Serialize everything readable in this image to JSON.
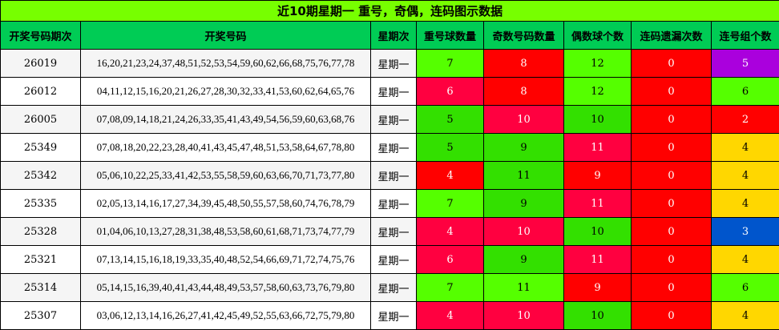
{
  "title": "近10期星期一 重号，奇偶，连码图示数据",
  "headers": [
    "开奖号码期次",
    "开奖号码",
    "星期次",
    "重号球数量",
    "奇数号码数量",
    "偶数球个数",
    "连码遗漏次数",
    "连号组个数"
  ],
  "colors": {
    "light_green": "#55ff00",
    "dark_green": "#33e000",
    "red": "#ff0000",
    "crimson": "#ff0040",
    "purple": "#aa00dd",
    "yellow": "#ffd700",
    "blue": "#0055cc",
    "title_bg": "#77ff00",
    "header_bg": "#00cc55"
  },
  "rows": [
    {
      "period": "26019",
      "numbers": "16,20,21,23,24,37,48,51,52,53,54,59,60,62,66,68,75,76,77,78",
      "weekday": "星期一",
      "cells": [
        {
          "v": "7",
          "c": "#55ff00",
          "t": "#000"
        },
        {
          "v": "8",
          "c": "#ff0000",
          "t": "#fff"
        },
        {
          "v": "12",
          "c": "#55ff00",
          "t": "#000"
        },
        {
          "v": "0",
          "c": "#ff0000",
          "t": "#fff"
        },
        {
          "v": "5",
          "c": "#aa00dd",
          "t": "#fff"
        }
      ]
    },
    {
      "period": "26012",
      "numbers": "04,11,12,15,16,20,21,26,27,28,30,32,33,41,53,60,62,64,65,76",
      "weekday": "星期一",
      "cells": [
        {
          "v": "6",
          "c": "#ff0040",
          "t": "#fff"
        },
        {
          "v": "8",
          "c": "#ff0000",
          "t": "#fff"
        },
        {
          "v": "12",
          "c": "#55ff00",
          "t": "#000"
        },
        {
          "v": "0",
          "c": "#ff0000",
          "t": "#fff"
        },
        {
          "v": "6",
          "c": "#55ff00",
          "t": "#000"
        }
      ]
    },
    {
      "period": "26005",
      "numbers": "07,08,09,14,18,21,24,26,33,35,41,43,49,54,56,59,60,63,68,76",
      "weekday": "星期一",
      "cells": [
        {
          "v": "5",
          "c": "#33e000",
          "t": "#000"
        },
        {
          "v": "10",
          "c": "#ff0040",
          "t": "#fff"
        },
        {
          "v": "10",
          "c": "#33e000",
          "t": "#000"
        },
        {
          "v": "0",
          "c": "#ff0000",
          "t": "#fff"
        },
        {
          "v": "2",
          "c": "#ff0000",
          "t": "#fff"
        }
      ]
    },
    {
      "period": "25349",
      "numbers": "07,08,18,20,22,23,28,40,41,43,45,47,48,51,53,58,64,67,78,80",
      "weekday": "星期一",
      "cells": [
        {
          "v": "5",
          "c": "#33e000",
          "t": "#000"
        },
        {
          "v": "9",
          "c": "#33e000",
          "t": "#000"
        },
        {
          "v": "11",
          "c": "#ff0040",
          "t": "#fff"
        },
        {
          "v": "0",
          "c": "#ff0000",
          "t": "#fff"
        },
        {
          "v": "4",
          "c": "#ffd700",
          "t": "#000"
        }
      ]
    },
    {
      "period": "25342",
      "numbers": "05,06,10,22,25,33,41,42,53,55,58,59,60,63,66,70,71,73,77,80",
      "weekday": "星期一",
      "cells": [
        {
          "v": "4",
          "c": "#ff0000",
          "t": "#fff"
        },
        {
          "v": "11",
          "c": "#33e000",
          "t": "#000"
        },
        {
          "v": "9",
          "c": "#ff0000",
          "t": "#fff"
        },
        {
          "v": "0",
          "c": "#ff0000",
          "t": "#fff"
        },
        {
          "v": "4",
          "c": "#ffd700",
          "t": "#000"
        }
      ]
    },
    {
      "period": "25335",
      "numbers": "02,05,13,14,16,17,27,34,39,45,48,50,55,57,58,60,74,76,78,79",
      "weekday": "星期一",
      "cells": [
        {
          "v": "7",
          "c": "#55ff00",
          "t": "#000"
        },
        {
          "v": "9",
          "c": "#33e000",
          "t": "#000"
        },
        {
          "v": "11",
          "c": "#ff0040",
          "t": "#fff"
        },
        {
          "v": "0",
          "c": "#ff0000",
          "t": "#fff"
        },
        {
          "v": "4",
          "c": "#ffd700",
          "t": "#000"
        }
      ]
    },
    {
      "period": "25328",
      "numbers": "01,04,06,10,13,27,28,31,38,48,53,58,60,61,68,71,73,74,77,79",
      "weekday": "星期一",
      "cells": [
        {
          "v": "4",
          "c": "#ff0040",
          "t": "#fff"
        },
        {
          "v": "10",
          "c": "#ff0040",
          "t": "#fff"
        },
        {
          "v": "10",
          "c": "#33e000",
          "t": "#000"
        },
        {
          "v": "0",
          "c": "#ff0000",
          "t": "#fff"
        },
        {
          "v": "3",
          "c": "#0055cc",
          "t": "#fff"
        }
      ]
    },
    {
      "period": "25321",
      "numbers": "07,13,14,15,16,18,19,33,35,40,48,52,54,66,69,71,72,74,75,76",
      "weekday": "星期一",
      "cells": [
        {
          "v": "6",
          "c": "#ff0040",
          "t": "#fff"
        },
        {
          "v": "9",
          "c": "#33e000",
          "t": "#000"
        },
        {
          "v": "11",
          "c": "#ff0040",
          "t": "#fff"
        },
        {
          "v": "0",
          "c": "#ff0000",
          "t": "#fff"
        },
        {
          "v": "4",
          "c": "#ffd700",
          "t": "#000"
        }
      ]
    },
    {
      "period": "25314",
      "numbers": "05,14,15,16,39,40,41,43,44,48,49,53,57,58,60,63,73,76,79,80",
      "weekday": "星期一",
      "cells": [
        {
          "v": "7",
          "c": "#55ff00",
          "t": "#000"
        },
        {
          "v": "11",
          "c": "#55ff00",
          "t": "#000"
        },
        {
          "v": "9",
          "c": "#ff0000",
          "t": "#fff"
        },
        {
          "v": "0",
          "c": "#ff0000",
          "t": "#fff"
        },
        {
          "v": "6",
          "c": "#55ff00",
          "t": "#000"
        }
      ]
    },
    {
      "period": "25307",
      "numbers": "03,06,12,13,14,16,26,27,41,42,45,49,52,55,63,66,72,75,79,80",
      "weekday": "星期一",
      "cells": [
        {
          "v": "4",
          "c": "#ff0040",
          "t": "#fff"
        },
        {
          "v": "10",
          "c": "#ff0040",
          "t": "#fff"
        },
        {
          "v": "10",
          "c": "#33e000",
          "t": "#000"
        },
        {
          "v": "0",
          "c": "#ff0000",
          "t": "#fff"
        },
        {
          "v": "4",
          "c": "#ffd700",
          "t": "#000"
        }
      ]
    }
  ]
}
